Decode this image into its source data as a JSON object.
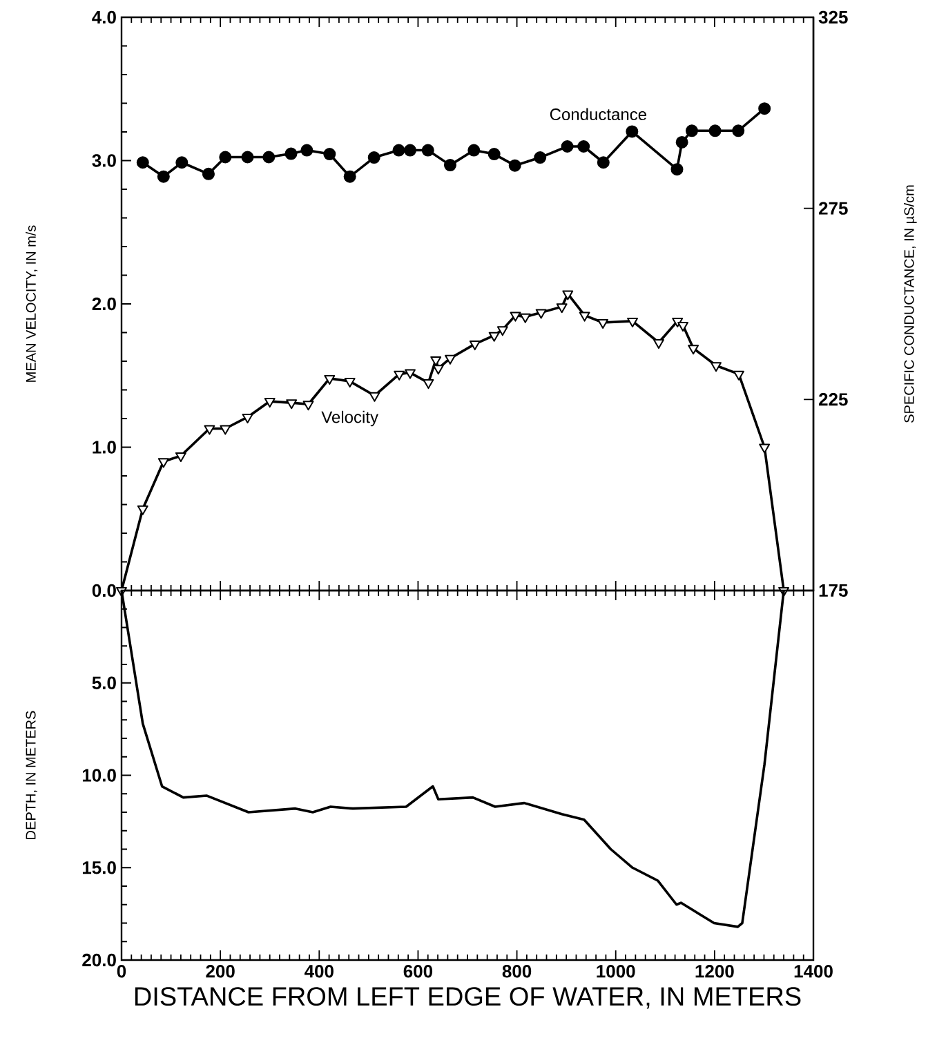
{
  "chart_data": [
    {
      "type": "line",
      "ylabel": "MEAN VELOCITY, IN m/s",
      "y2label": "SPECIFIC CONDUCTANCE, IN µS/cm",
      "xlim": [
        0,
        1400
      ],
      "xticks": [
        0,
        200,
        400,
        600,
        800,
        1000,
        1200,
        1400
      ],
      "ylim": [
        0,
        4
      ],
      "yticks": [
        {
          "value": 0,
          "label": "0.0"
        },
        {
          "value": 1,
          "label": "1.0"
        },
        {
          "value": 2,
          "label": "2.0"
        },
        {
          "value": 3,
          "label": "3.0"
        },
        {
          "value": 4,
          "label": "4.0"
        }
      ],
      "y2lim": [
        175,
        325
      ],
      "y2ticks": [
        175,
        225,
        275,
        325
      ],
      "tick_labels": "y",
      "series": [
        {
          "name": "Velocity",
          "color": "#000000",
          "marker": "triangle",
          "x": [
            0,
            43,
            85,
            120,
            178,
            210,
            255,
            300,
            344,
            378,
            421,
            462,
            512,
            562,
            584,
            621,
            636,
            641,
            665,
            715,
            754,
            771,
            797,
            817,
            849,
            891,
            903,
            937,
            974,
            1034,
            1087,
            1125,
            1136,
            1157,
            1203,
            1249,
            1301,
            1340
          ],
          "values": [
            0,
            0.57,
            0.9,
            0.94,
            1.13,
            1.13,
            1.21,
            1.32,
            1.31,
            1.3,
            1.48,
            1.46,
            1.36,
            1.51,
            1.52,
            1.45,
            1.61,
            1.55,
            1.62,
            1.72,
            1.78,
            1.82,
            1.92,
            1.91,
            1.94,
            1.98,
            2.07,
            1.92,
            1.87,
            1.88,
            1.73,
            1.88,
            1.85,
            1.69,
            1.57,
            1.51,
            1.0,
            0
          ]
        },
        {
          "name": "Conductance",
          "color": "#000000",
          "marker": "circle",
          "axis": "y2",
          "x": [
            43,
            85,
            122,
            176,
            210,
            255,
            298,
            343,
            375,
            421,
            462,
            511,
            561,
            584,
            620,
            665,
            713,
            754,
            796,
            847,
            902,
            935,
            975,
            1033,
            1124,
            1134,
            1154,
            1201,
            1248,
            1301
          ],
          "values": [
            287,
            283.3,
            287,
            284,
            288.4,
            288.4,
            288.4,
            289.3,
            290.2,
            289.2,
            283.3,
            288.3,
            290.2,
            290.2,
            290.2,
            286.3,
            290.2,
            289.2,
            286.2,
            288.3,
            291.2,
            291.2,
            287,
            295.1,
            285.2,
            292.3,
            295.3,
            295.3,
            295.3,
            301.1
          ]
        }
      ]
    },
    {
      "type": "line",
      "xlabel": "DISTANCE FROM LEFT EDGE OF WATER, IN METERS",
      "ylabel": "DEPTH, IN METERS",
      "xlim": [
        0,
        1400
      ],
      "xticks": [
        0,
        200,
        400,
        600,
        800,
        1000,
        1200,
        1400
      ],
      "ylim": [
        20,
        0
      ],
      "yticks": [
        {
          "value": 0,
          "label": null
        },
        {
          "value": 5,
          "label": "5.0"
        },
        {
          "value": 10,
          "label": "10.0"
        },
        {
          "value": 15,
          "label": "15.0"
        },
        {
          "value": 20,
          "label": "20.0"
        }
      ],
      "series": [
        {
          "color": "#000000",
          "x": [
            0,
            43,
            82,
            125,
            172,
            257,
            352,
            387,
            423,
            468,
            576,
            630,
            641,
            711,
            756,
            815,
            891,
            936,
            990,
            1034,
            1085,
            1123,
            1132,
            1199,
            1247,
            1256,
            1301,
            1340
          ],
          "values": [
            0,
            7.2,
            10.6,
            11.2,
            11.1,
            12.0,
            11.8,
            12.0,
            11.7,
            11.8,
            11.7,
            10.6,
            11.3,
            11.2,
            11.7,
            11.5,
            12.1,
            12.4,
            14.0,
            15.0,
            15.7,
            17.0,
            16.9,
            18.0,
            18.2,
            18.0,
            9.4,
            0
          ]
        }
      ]
    }
  ]
}
